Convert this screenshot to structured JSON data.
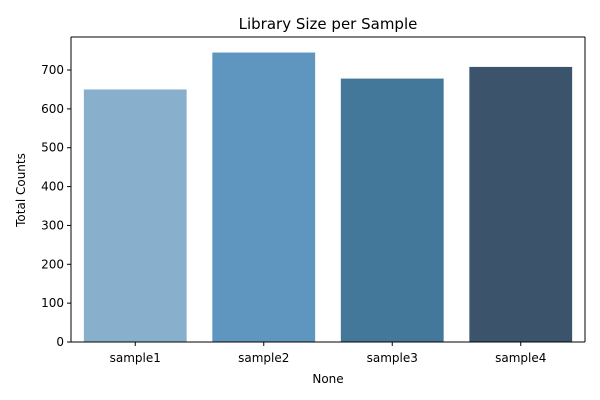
{
  "chart_data": {
    "type": "bar",
    "title": "Library Size per Sample",
    "xlabel": "None",
    "ylabel": "Total Counts",
    "categories": [
      "sample1",
      "sample2",
      "sample3",
      "sample4"
    ],
    "values": [
      650,
      745,
      678,
      708
    ],
    "colors": [
      "#88b0cc",
      "#5e96bf",
      "#43789b",
      "#3c546b"
    ],
    "ylim": [
      0,
      785
    ],
    "yticks": [
      0,
      100,
      200,
      300,
      400,
      500,
      600,
      700
    ],
    "grid": false
  }
}
